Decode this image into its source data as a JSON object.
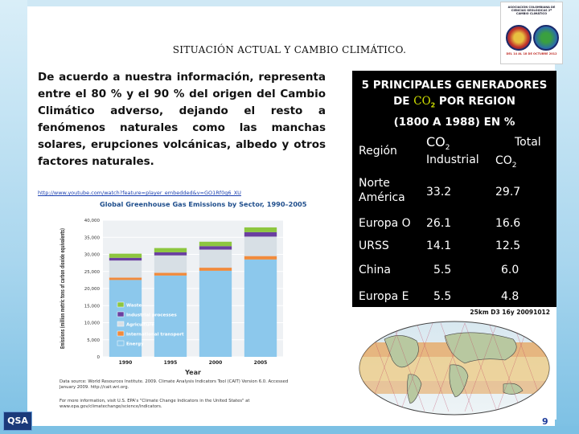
{
  "title": "SITUACIÓN ACTUAL Y CAMBIO CLIMÁTICO.",
  "emblem": {
    "top_text": "ASOCIACIÓN COLOMBIANA DE CIENCIAS GEOLÓGICAS 2º CAMBIO CLIMÁTICO",
    "bottom_text": "DEL 14 AL 18 DE OCTUBRE 2012"
  },
  "paragraph": "De acuerdo a nuestra información, representa entre el 80 % y el 90 % del origen del Cambio Climático adverso, dejando el resto a fenómenos naturales como las manchas solares, erupciones volcánicas, albedo y otros factores naturales.",
  "url": "http://www.youtube.com/watch?feature=player_embedded&v=GO1Rf0g6_XU",
  "table": {
    "heading_line1": "5 PRINCIPALES GENERADORES",
    "heading_line2_pre": "DE ",
    "heading_line2_co2": "CO",
    "heading_line2_sub": "2",
    "heading_line2_post": " POR REGION",
    "heading_line3": "(1800 A 1988) EN %",
    "col_region": "Región",
    "col_co2": "CO",
    "col_co2_sub": "2",
    "col_industrial": "Industrial",
    "col_total": "Total",
    "col_total_co2": "CO",
    "col_total_sub": "2",
    "rows": [
      {
        "region": "Norte América",
        "industrial": "33.2",
        "total": "29.7"
      },
      {
        "region": "Europa O",
        "industrial": "26.1",
        "total": "16.6"
      },
      {
        "region": "URSS",
        "industrial": "14.1",
        "total": "12.5"
      },
      {
        "region": "China",
        "industrial": "5.5",
        "total": "6.0"
      },
      {
        "region": "Europa E",
        "industrial": "5.5",
        "total": "4.8"
      }
    ]
  },
  "map": {
    "caption": "25km D3 16y 20091012"
  },
  "logo_text": "QSA",
  "page_number": "9",
  "chart_data": {
    "type": "bar",
    "title": "Global Greenhouse Gas Emissions by Sector, 1990–2005",
    "xlabel": "Year",
    "ylabel": "Emissions (million metric tons of carbon dioxide equivalents)",
    "categories": [
      "1990",
      "1995",
      "2000",
      "2005"
    ],
    "ylim": [
      0,
      40000
    ],
    "yticks": [
      "0",
      "5,000",
      "10,000",
      "15,000",
      "20,000",
      "25,000",
      "30,000",
      "35,000",
      "40,000"
    ],
    "series": [
      {
        "name": "Energy",
        "color": "#8cc8ec",
        "values": [
          22500,
          23800,
          25200,
          28500
        ]
      },
      {
        "name": "International transport",
        "color": "#f08a3c",
        "values": [
          700,
          800,
          900,
          1000
        ]
      },
      {
        "name": "Agriculture",
        "color": "#d7dfe5",
        "values": [
          5000,
          5100,
          5300,
          5700
        ]
      },
      {
        "name": "Industrial processes",
        "color": "#6a3fa0",
        "values": [
          800,
          900,
          1000,
          1300
        ]
      },
      {
        "name": "Waste",
        "color": "#8dc63f",
        "values": [
          1200,
          1250,
          1300,
          1400
        ]
      }
    ],
    "legend": "inside-bottom-left",
    "source": "Data source: World Resources Institute. 2009. Climate Analysis Indicators Tool (CAIT) Version 6.0. Accessed January 2009. http://cait.wri.org.",
    "more_info": "For more information, visit U.S. EPA's \"Climate Change Indicators in the United States\" at www.epa.gov/climatechange/science/indicators."
  }
}
